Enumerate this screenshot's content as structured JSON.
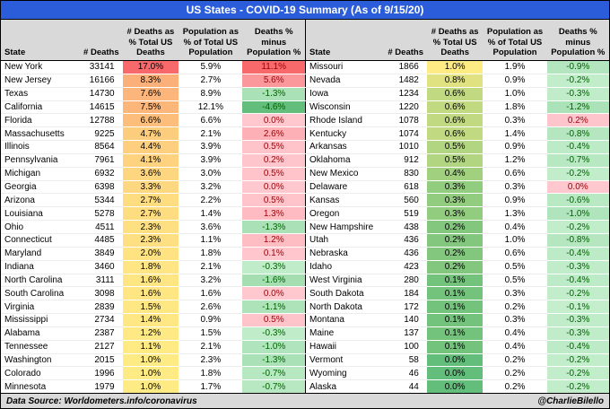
{
  "footer": {
    "source": "Data Source: Worldometers.info/coronavirus",
    "handle": "@CharlieBilello"
  },
  "colors": {
    "title_bg": "#2B5CD9",
    "title_text": "#FFFFFF",
    "header_bg": "#D9D9D9",
    "footer_bg": "#D9D9D9",
    "share_scale": {
      "red": "#F8696B",
      "yellow": "#FFEB84",
      "green": "#63BE7B",
      "mid": 1.0,
      "max": 17.0
    },
    "diff_positive": {
      "bg_from": "#FFC7CE",
      "bg_to": "#F8696B",
      "max": 11.1,
      "text": "#9C0006"
    },
    "diff_negative": {
      "bg_from": "#C6EFCE",
      "bg_to": "#63BE7B",
      "min": -4.6,
      "text": "#006100"
    }
  },
  "chart_data": {
    "type": "table",
    "title": "US States - COVID-19 Summary (As of 9/15/20)",
    "columns": [
      "State",
      "# Deaths",
      "# Deaths as\n% Total US\nDeaths",
      "Population as\n% of Total US\nPopulation",
      "Deaths % minus\nPopulation %"
    ],
    "rows": [
      [
        "New York",
        33141,
        17.0,
        5.9,
        11.1
      ],
      [
        "New Jersey",
        16166,
        8.3,
        2.7,
        5.6
      ],
      [
        "Texas",
        14730,
        7.6,
        8.9,
        -1.3
      ],
      [
        "California",
        14615,
        7.5,
        12.1,
        -4.6
      ],
      [
        "Florida",
        12788,
        6.6,
        6.6,
        0.0
      ],
      [
        "Massachusetts",
        9225,
        4.7,
        2.1,
        2.6
      ],
      [
        "Illinois",
        8564,
        4.4,
        3.9,
        0.5
      ],
      [
        "Pennsylvania",
        7961,
        4.1,
        3.9,
        0.2
      ],
      [
        "Michigan",
        6932,
        3.6,
        3.0,
        0.5
      ],
      [
        "Georgia",
        6398,
        3.3,
        3.2,
        0.0
      ],
      [
        "Arizona",
        5344,
        2.7,
        2.2,
        0.5
      ],
      [
        "Louisiana",
        5278,
        2.7,
        1.4,
        1.3
      ],
      [
        "Ohio",
        4511,
        2.3,
        3.6,
        -1.3
      ],
      [
        "Connecticut",
        4485,
        2.3,
        1.1,
        1.2
      ],
      [
        "Maryland",
        3849,
        2.0,
        1.8,
        0.1
      ],
      [
        "Indiana",
        3460,
        1.8,
        2.1,
        -0.3
      ],
      [
        "North Carolina",
        3111,
        1.6,
        3.2,
        -1.6
      ],
      [
        "South Carolina",
        3098,
        1.6,
        1.6,
        0.0
      ],
      [
        "Virginia",
        2839,
        1.5,
        2.6,
        -1.1
      ],
      [
        "Mississippi",
        2734,
        1.4,
        0.9,
        0.5
      ],
      [
        "Alabama",
        2387,
        1.2,
        1.5,
        -0.3
      ],
      [
        "Tennessee",
        2127,
        1.1,
        2.1,
        -1.0
      ],
      [
        "Washington",
        2015,
        1.0,
        2.3,
        -1.3
      ],
      [
        "Colorado",
        1996,
        1.0,
        1.8,
        -0.7
      ],
      [
        "Minnesota",
        1979,
        1.0,
        1.7,
        -0.7
      ],
      [
        "Missouri",
        1866,
        1.0,
        1.9,
        -0.9
      ],
      [
        "Nevada",
        1482,
        0.8,
        0.9,
        -0.2
      ],
      [
        "Iowa",
        1234,
        0.6,
        1.0,
        -0.3
      ],
      [
        "Wisconsin",
        1220,
        0.6,
        1.8,
        -1.2
      ],
      [
        "Rhode Island",
        1078,
        0.6,
        0.3,
        0.2
      ],
      [
        "Kentucky",
        1074,
        0.6,
        1.4,
        -0.8
      ],
      [
        "Arkansas",
        1010,
        0.5,
        0.9,
        -0.4
      ],
      [
        "Oklahoma",
        912,
        0.5,
        1.2,
        -0.7
      ],
      [
        "New Mexico",
        830,
        0.4,
        0.6,
        -0.2
      ],
      [
        "Delaware",
        618,
        0.3,
        0.3,
        0.0
      ],
      [
        "Kansas",
        560,
        0.3,
        0.9,
        -0.6
      ],
      [
        "Oregon",
        519,
        0.3,
        1.3,
        -1.0
      ],
      [
        "New Hampshire",
        438,
        0.2,
        0.4,
        -0.2
      ],
      [
        "Utah",
        436,
        0.2,
        1.0,
        -0.8
      ],
      [
        "Nebraska",
        436,
        0.2,
        0.6,
        -0.4
      ],
      [
        "Idaho",
        423,
        0.2,
        0.5,
        -0.3
      ],
      [
        "West Virginia",
        280,
        0.1,
        0.5,
        -0.4
      ],
      [
        "South Dakota",
        184,
        0.1,
        0.3,
        -0.2
      ],
      [
        "North Dakota",
        172,
        0.1,
        0.2,
        -0.1
      ],
      [
        "Montana",
        140,
        0.1,
        0.3,
        -0.3
      ],
      [
        "Maine",
        137,
        0.1,
        0.4,
        -0.3
      ],
      [
        "Hawaii",
        100,
        0.1,
        0.4,
        -0.4
      ],
      [
        "Vermont",
        58,
        0.0,
        0.2,
        -0.2
      ],
      [
        "Wyoming",
        46,
        0.0,
        0.2,
        -0.2
      ],
      [
        "Alaska",
        44,
        0.0,
        0.2,
        -0.2
      ]
    ]
  }
}
